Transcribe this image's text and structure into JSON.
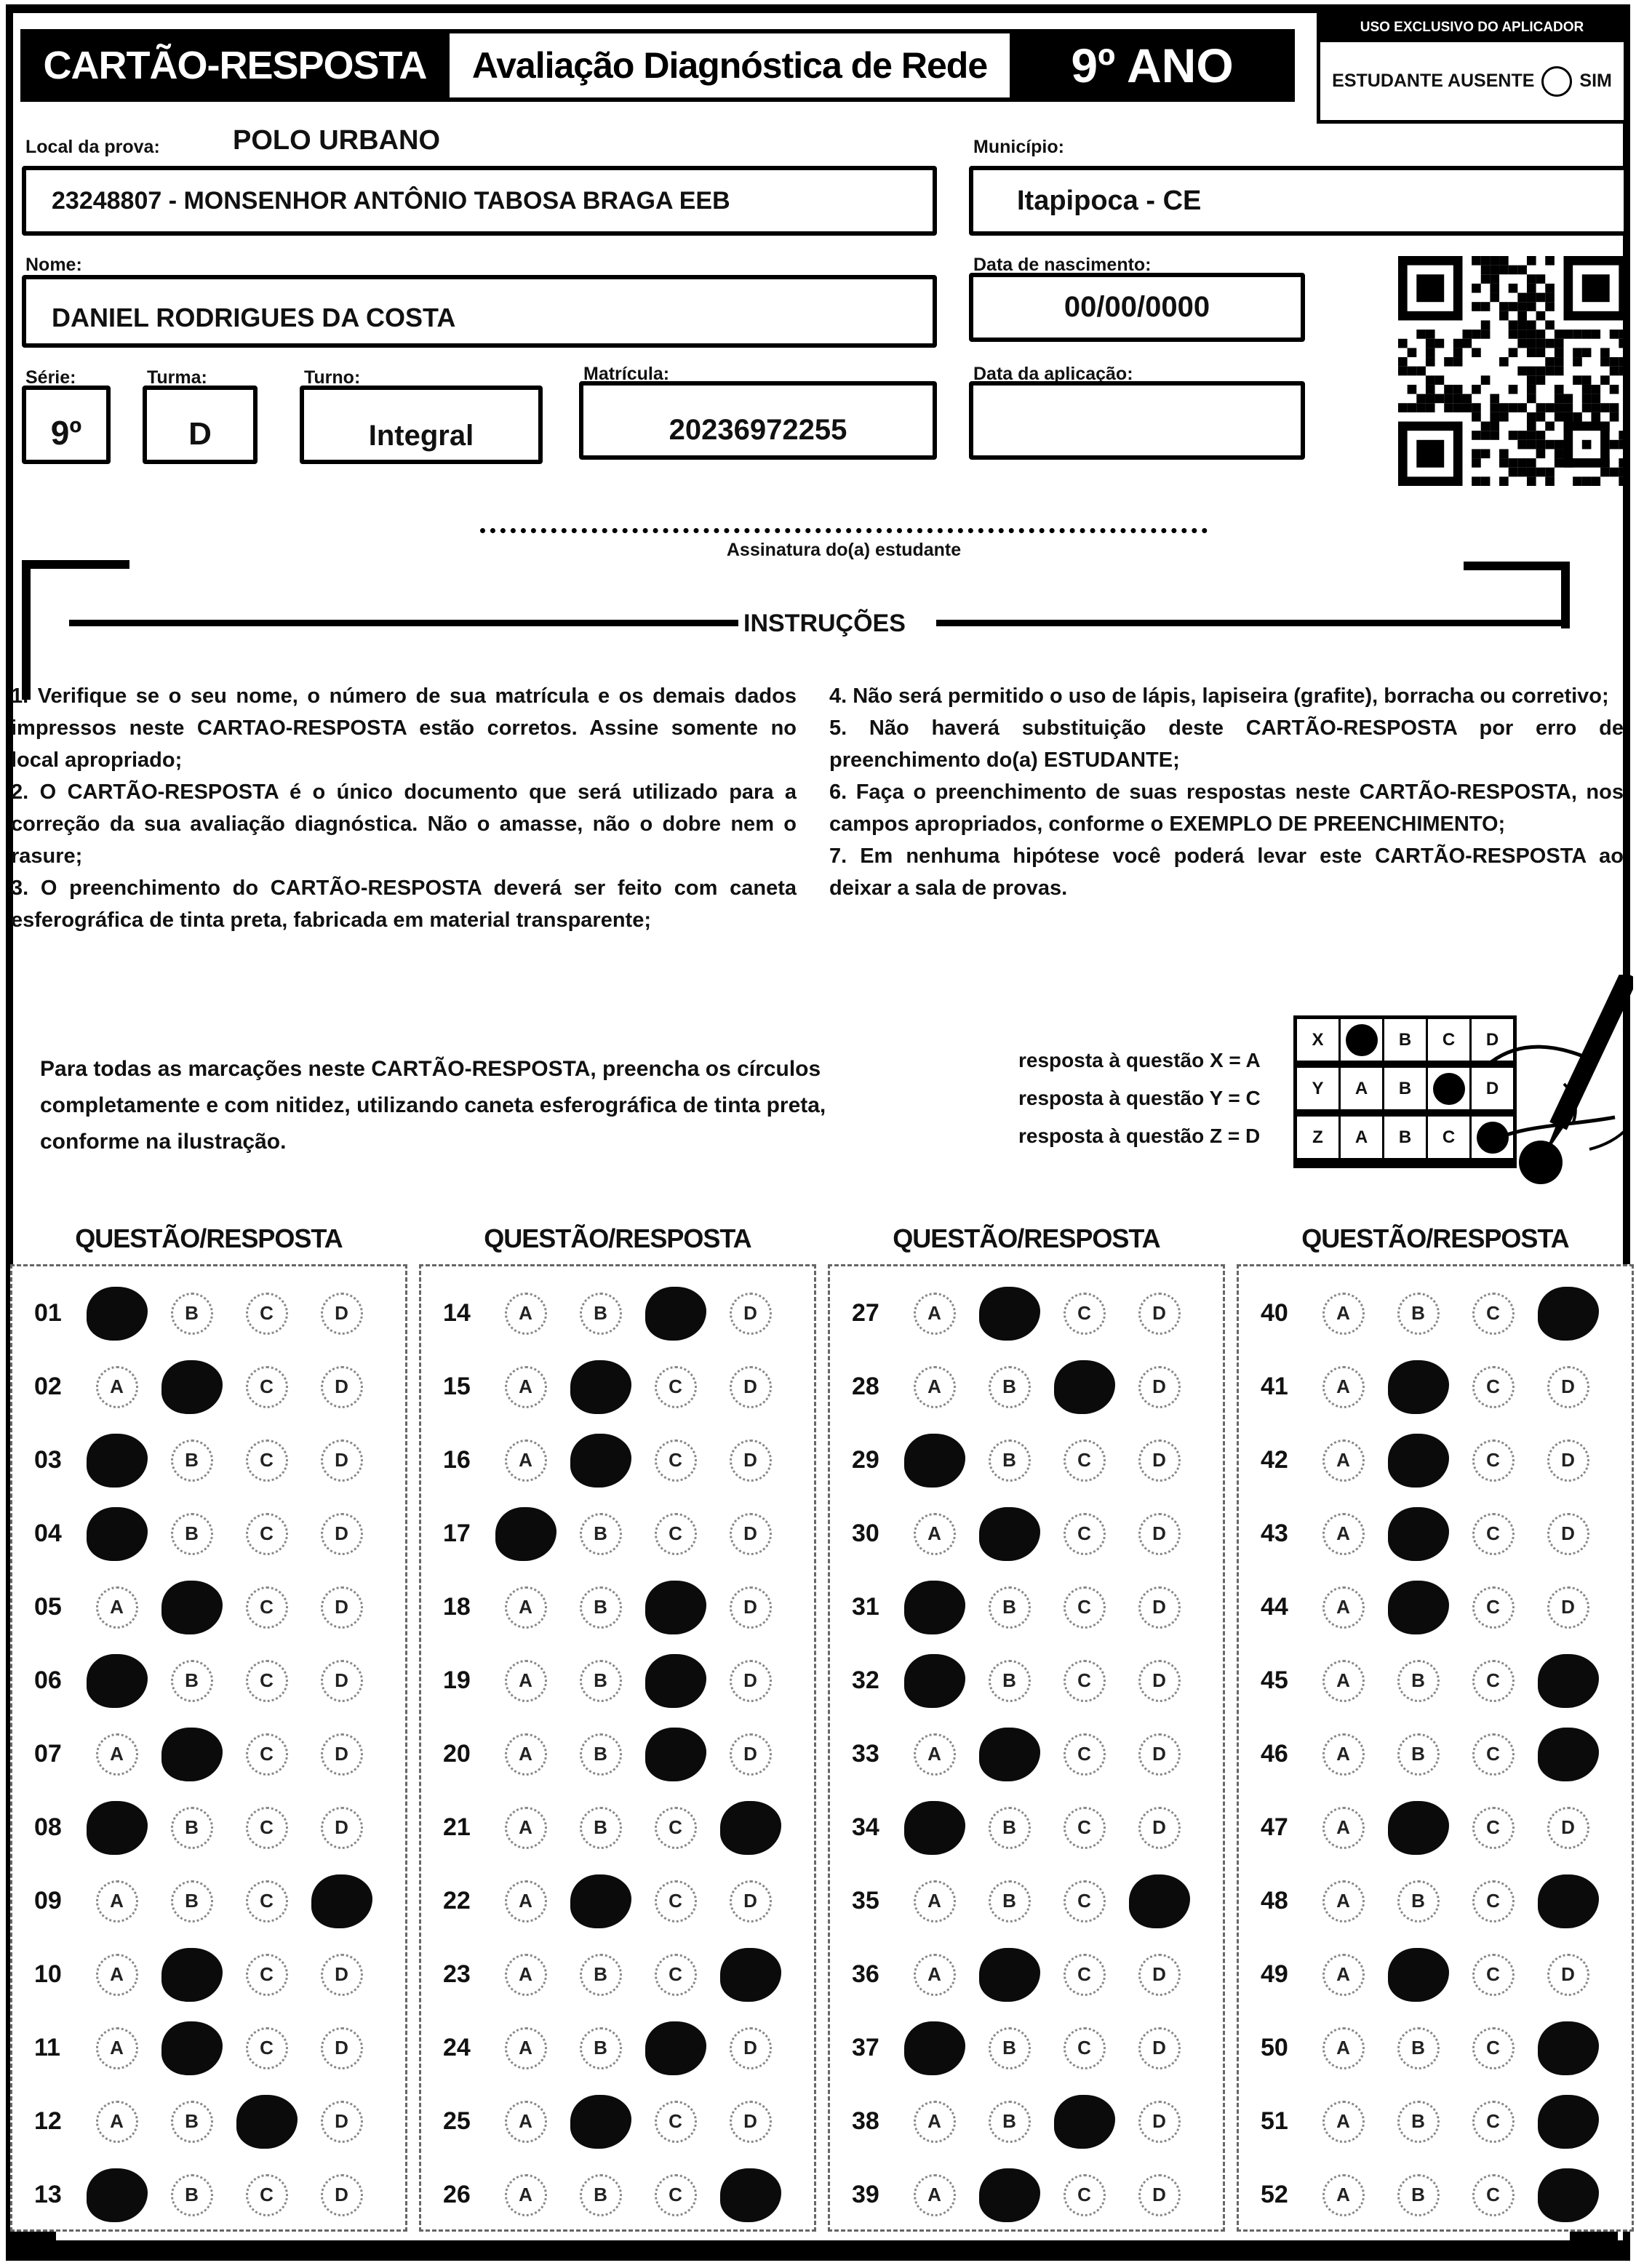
{
  "header": {
    "title": "CARTÃO-RESPOSTA",
    "subtitle": "Avaliação Diagnóstica de Rede",
    "grade": "9º ANO",
    "applicator": {
      "title": "USO EXCLUSIVO DO APLICADOR",
      "absent_label": "ESTUDANTE AUSENTE",
      "absent_option": "SIM"
    }
  },
  "fields": {
    "local_label": "Local da prova:",
    "local_value": "POLO URBANO",
    "school_value": "23248807 - MONSENHOR ANTÔNIO TABOSA BRAGA EEB",
    "municipio_label": "Município:",
    "municipio_value": "Itapipoca - CE",
    "nome_label": "Nome:",
    "nome_value": "DANIEL RODRIGUES DA COSTA",
    "nascimento_label": "Data de nascimento:",
    "nascimento_value": "00/00/0000",
    "serie_label": "Série:",
    "serie_value": "9º",
    "turma_label": "Turma:",
    "turma_value": "D",
    "turno_label": "Turno:",
    "turno_value": "Integral",
    "matricula_label": "Matrícula:",
    "matricula_value": "20236972255",
    "aplicacao_label": "Data da aplicação:",
    "aplicacao_value": ""
  },
  "signature": {
    "label": "Assinatura do(a) estudante"
  },
  "instructions": {
    "title": "INSTRUÇÕES",
    "left": [
      "1. Verifique se o seu nome, o número de sua matrícula e os demais dados impressos neste CARTAO-RESPOSTA estão corretos. Assine somente no local apropriado;",
      "2. O CARTÃO-RESPOSTA é o único documento que será utilizado para a correção da sua avaliação diagnóstica. Não o amasse, não o dobre nem o rasure;",
      "3. O preenchimento do CARTÃO-RESPOSTA deverá ser feito com caneta esferográfica de tinta preta, fabricada em material transparente;"
    ],
    "right": [
      "4. Não será permitido o uso de lápis, lapiseira (grafite), borracha ou corretivo;",
      "5. Não haverá substituição deste CARTÃO-RESPOSTA por erro de preenchimento do(a) ESTUDANTE;",
      "6. Faça o preenchimento de suas respostas neste CARTÃO-RESPOSTA, nos campos apropriados, conforme o EXEMPLO DE PREENCHIMENTO;",
      "7. Em nenhuma hipótese você poderá levar este CARTÃO-RESPOSTA ao deixar a sala de provas."
    ]
  },
  "example": {
    "paragraph": "Para todas as marcações neste CARTÃO-RESPOSTA, preencha os círculos completamente e com nitidez, utilizando caneta esferográfica de tinta preta, conforme na ilustração.",
    "legend": [
      "resposta à questão X = A",
      "resposta à questão Y = C",
      "resposta à questão Z = D"
    ],
    "options": [
      "A",
      "B",
      "C",
      "D"
    ],
    "rows": [
      {
        "label": "X",
        "filled": "A"
      },
      {
        "label": "Y",
        "filled": "C"
      },
      {
        "label": "Z",
        "filled": "D"
      }
    ]
  },
  "answers": {
    "column_header": "QUESTÃO/RESPOSTA",
    "options": [
      "A",
      "B",
      "C",
      "D"
    ],
    "columns": [
      [
        {
          "q": "01",
          "marked": "A"
        },
        {
          "q": "02",
          "marked": "B"
        },
        {
          "q": "03",
          "marked": "A"
        },
        {
          "q": "04",
          "marked": "A"
        },
        {
          "q": "05",
          "marked": "B"
        },
        {
          "q": "06",
          "marked": "A"
        },
        {
          "q": "07",
          "marked": "B"
        },
        {
          "q": "08",
          "marked": "A"
        },
        {
          "q": "09",
          "marked": "D"
        },
        {
          "q": "10",
          "marked": "B"
        },
        {
          "q": "11",
          "marked": "B"
        },
        {
          "q": "12",
          "marked": "C"
        },
        {
          "q": "13",
          "marked": "A"
        }
      ],
      [
        {
          "q": "14",
          "marked": "C"
        },
        {
          "q": "15",
          "marked": "B"
        },
        {
          "q": "16",
          "marked": "B"
        },
        {
          "q": "17",
          "marked": "A"
        },
        {
          "q": "18",
          "marked": "C"
        },
        {
          "q": "19",
          "marked": "C"
        },
        {
          "q": "20",
          "marked": "C"
        },
        {
          "q": "21",
          "marked": "D"
        },
        {
          "q": "22",
          "marked": "B"
        },
        {
          "q": "23",
          "marked": "D"
        },
        {
          "q": "24",
          "marked": "C"
        },
        {
          "q": "25",
          "marked": "B"
        },
        {
          "q": "26",
          "marked": "D"
        }
      ],
      [
        {
          "q": "27",
          "marked": "B"
        },
        {
          "q": "28",
          "marked": "C"
        },
        {
          "q": "29",
          "marked": "A"
        },
        {
          "q": "30",
          "marked": "B"
        },
        {
          "q": "31",
          "marked": "A"
        },
        {
          "q": "32",
          "marked": "A"
        },
        {
          "q": "33",
          "marked": "B"
        },
        {
          "q": "34",
          "marked": "A"
        },
        {
          "q": "35",
          "marked": "D"
        },
        {
          "q": "36",
          "marked": "B"
        },
        {
          "q": "37",
          "marked": "A"
        },
        {
          "q": "38",
          "marked": "C"
        },
        {
          "q": "39",
          "marked": "B"
        }
      ],
      [
        {
          "q": "40",
          "marked": "D"
        },
        {
          "q": "41",
          "marked": "B"
        },
        {
          "q": "42",
          "marked": "B"
        },
        {
          "q": "43",
          "marked": "B"
        },
        {
          "q": "44",
          "marked": "B"
        },
        {
          "q": "45",
          "marked": "D"
        },
        {
          "q": "46",
          "marked": "D"
        },
        {
          "q": "47",
          "marked": "B"
        },
        {
          "q": "48",
          "marked": "D"
        },
        {
          "q": "49",
          "marked": "B"
        },
        {
          "q": "50",
          "marked": "D"
        },
        {
          "q": "51",
          "marked": "D"
        },
        {
          "q": "52",
          "marked": "D"
        }
      ]
    ]
  }
}
